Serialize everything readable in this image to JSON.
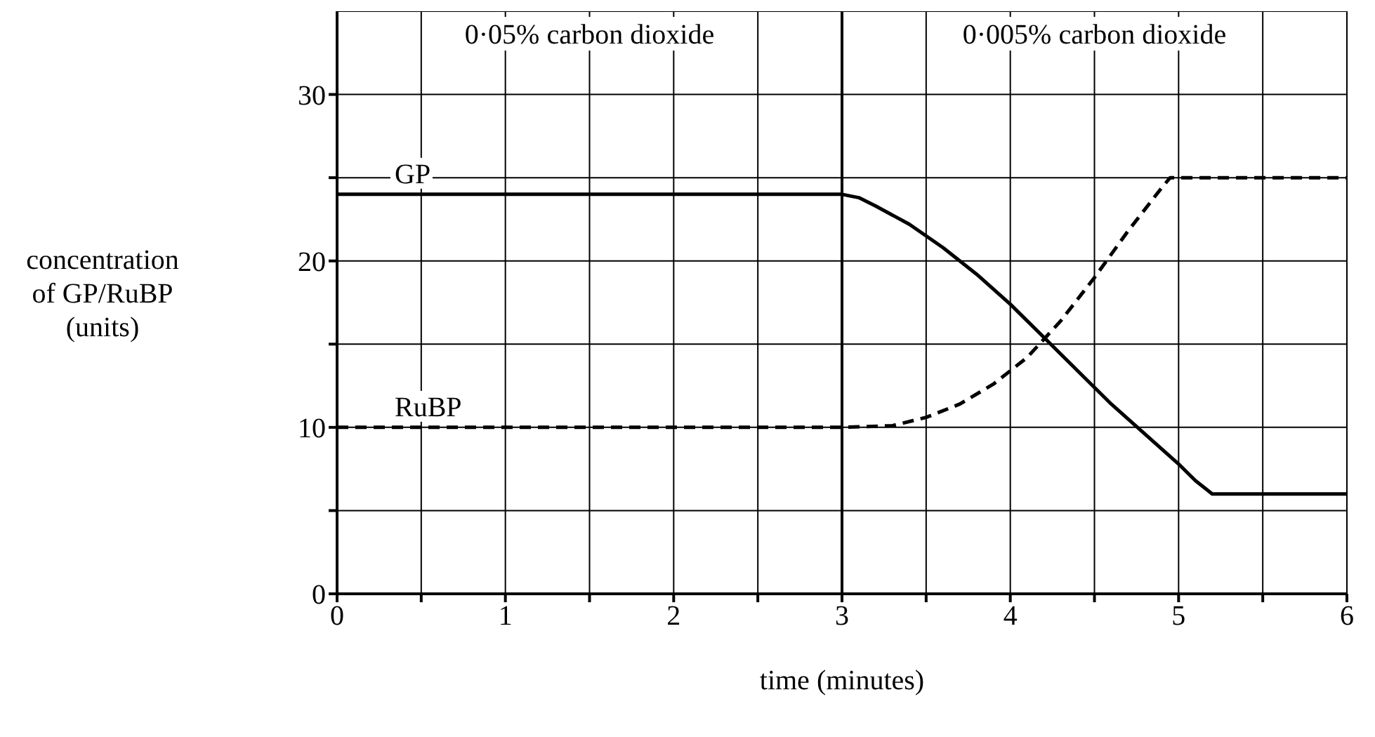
{
  "chart_data": {
    "type": "line",
    "xlabel": "time (minutes)",
    "ylabel": "concentration of GP/RuBP (units)",
    "series": [
      {
        "name": "GP",
        "color": "#000000",
        "line_style": "solid",
        "x": [
          0,
          1,
          2,
          3,
          3.1,
          3.2,
          3.4,
          3.6,
          3.8,
          4.0,
          4.2,
          4.4,
          4.6,
          4.8,
          5.0,
          5.1,
          5.2,
          5.5,
          6
        ],
        "values": [
          24,
          24,
          24,
          24,
          23.8,
          23.3,
          22.2,
          20.8,
          19.2,
          17.4,
          15.4,
          13.4,
          11.4,
          9.6,
          7.8,
          6.8,
          6,
          6,
          6
        ]
      },
      {
        "name": "RuBP",
        "color": "#000000",
        "line_style": "dashed",
        "x": [
          0,
          1,
          2,
          3,
          3.3,
          3.5,
          3.7,
          3.9,
          4.1,
          4.3,
          4.5,
          4.7,
          4.9,
          4.95,
          5.5,
          6
        ],
        "values": [
          10,
          10,
          10,
          10,
          10.1,
          10.6,
          11.4,
          12.6,
          14.2,
          16.4,
          19,
          21.8,
          24.4,
          25,
          25,
          25
        ]
      }
    ],
    "xlim": [
      0,
      6
    ],
    "xticks": [
      0,
      {
        "value": 0.5,
        "label": null
      },
      1,
      {
        "value": 1.5,
        "label": null
      },
      2,
      {
        "value": 2.5,
        "label": null
      },
      3,
      {
        "value": 3.5,
        "label": null
      },
      4,
      {
        "value": 4.5,
        "label": null
      },
      5,
      {
        "value": 5.5,
        "label": null
      },
      6
    ],
    "ylim": [
      0,
      35
    ],
    "yticks": [
      0,
      {
        "value": 5,
        "label": null
      },
      10,
      {
        "value": 15,
        "label": null
      },
      20,
      {
        "value": 25,
        "label": null
      },
      30
    ],
    "grid": true,
    "marker": "none",
    "ref_lines": [
      {
        "axis": "x",
        "value": 3,
        "label": null
      }
    ],
    "annotations": [
      "0·05% carbon dioxide",
      "0·005% carbon dioxide"
    ]
  }
}
